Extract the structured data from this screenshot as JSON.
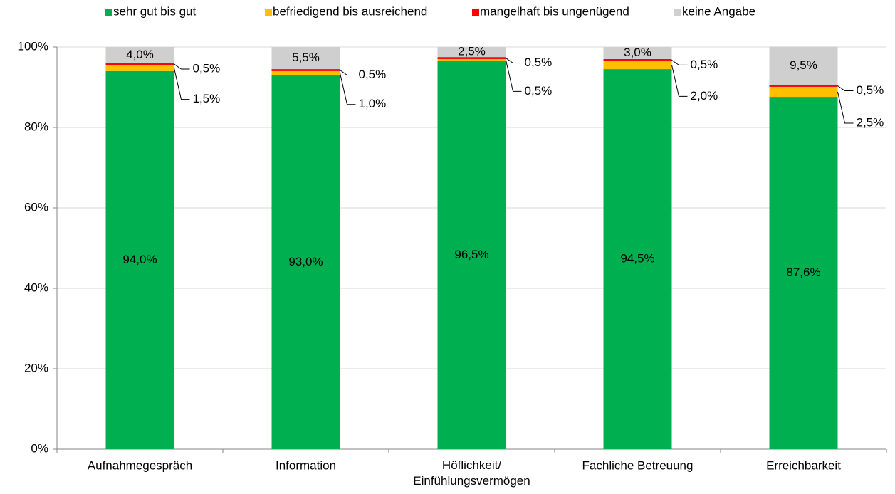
{
  "chart_data": {
    "type": "stacked_bar",
    "categories": [
      "Aufnahmegespräch",
      "Information",
      "Höflichkeit/\nEinfühlungsvermögen",
      "Fachliche Betreuung",
      "Erreichbarkeit"
    ],
    "series": [
      {
        "name": "sehr gut bis gut",
        "color": "#00b050",
        "values": [
          94.0,
          93.0,
          96.5,
          94.5,
          87.6
        ],
        "value_labels": [
          "94,0%",
          "93,0%",
          "96,5%",
          "94,5%",
          "87,6%"
        ]
      },
      {
        "name": "befriedigend bis ausreichend",
        "color": "#ffc000",
        "values": [
          1.5,
          1.0,
          0.5,
          2.0,
          2.5
        ],
        "value_labels": [
          "1,5%",
          "1,0%",
          "0,5%",
          "2,0%",
          "2,5%"
        ]
      },
      {
        "name": "mangelhaft bis ungenügend",
        "color": "#ff0000",
        "values": [
          0.5,
          0.5,
          0.5,
          0.5,
          0.5
        ],
        "value_labels": [
          "0,5%",
          "0,5%",
          "0,5%",
          "0,5%",
          "0,5%"
        ]
      },
      {
        "name": "keine Angabe",
        "color": "#cfcfcf",
        "values": [
          4.0,
          5.5,
          2.5,
          3.0,
          9.5
        ],
        "value_labels": [
          "4,0%",
          "5,5%",
          "2,5%",
          "3,0%",
          "9,5%"
        ]
      }
    ],
    "ylim": [
      0,
      100
    ],
    "yticks": [
      {
        "value": 0,
        "label": "0%"
      },
      {
        "value": 20,
        "label": "20%"
      },
      {
        "value": 40,
        "label": "40%"
      },
      {
        "value": 60,
        "label": "60%"
      },
      {
        "value": 80,
        "label": "80%"
      },
      {
        "value": 100,
        "label": "100%"
      }
    ],
    "grid": true,
    "legend": "top"
  }
}
